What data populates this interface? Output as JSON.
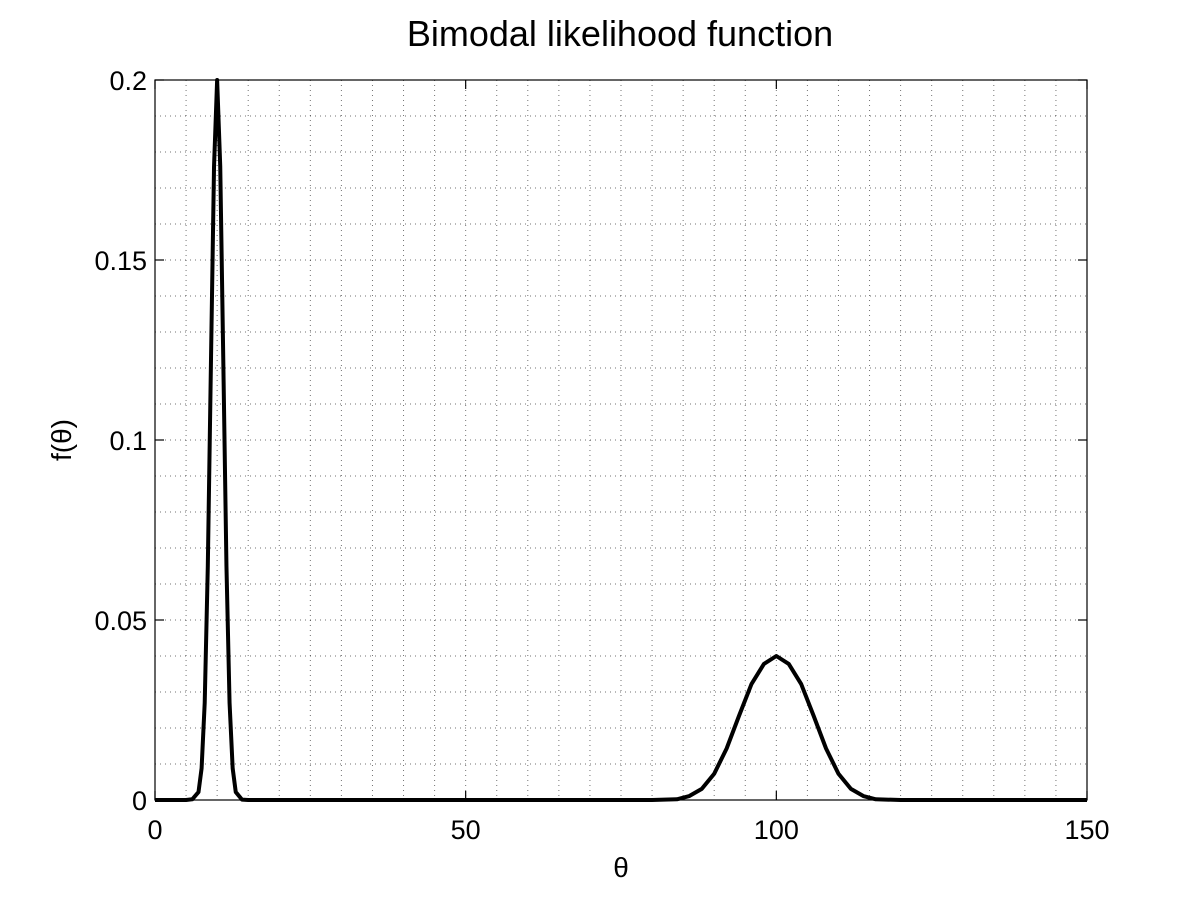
{
  "chart_data": {
    "type": "line",
    "title": "Bimodal likelihood function",
    "xlabel": "θ",
    "ylabel": "f(θ)",
    "xlim": [
      0,
      150
    ],
    "ylim": [
      0,
      0.2
    ],
    "xticks": [
      0,
      50,
      100,
      150
    ],
    "xtick_labels": [
      "0",
      "50",
      "100",
      "150"
    ],
    "yticks": [
      0,
      0.05,
      0.1,
      0.15,
      0.2
    ],
    "ytick_labels": [
      "0",
      "0.05",
      "0.1",
      "0.15",
      "0.2"
    ],
    "x_minor_step": 5,
    "y_minor_step": 0.01,
    "grid": true,
    "legend": "none",
    "series": [
      {
        "color": "#000000",
        "x": [
          0,
          5,
          6,
          7,
          7.5,
          8,
          8.5,
          9,
          9.5,
          10,
          10.5,
          11,
          11.5,
          12,
          12.5,
          13,
          14,
          15,
          20,
          40,
          60,
          80,
          84,
          86,
          88,
          90,
          92,
          94,
          96,
          98,
          100,
          102,
          104,
          106,
          108,
          110,
          112,
          114,
          116,
          120,
          130,
          150
        ],
        "y": [
          0,
          0,
          0.0002,
          0.0022,
          0.0088,
          0.027,
          0.065,
          0.121,
          0.176,
          0.2,
          0.176,
          0.121,
          0.065,
          0.027,
          0.0088,
          0.0022,
          0.0001,
          0,
          0,
          0,
          0,
          0,
          0.0002,
          0.0011,
          0.0031,
          0.0073,
          0.0143,
          0.0234,
          0.0322,
          0.0378,
          0.04,
          0.0378,
          0.0322,
          0.0234,
          0.0143,
          0.0073,
          0.0031,
          0.0011,
          0.0002,
          0,
          0,
          0
        ]
      }
    ]
  }
}
